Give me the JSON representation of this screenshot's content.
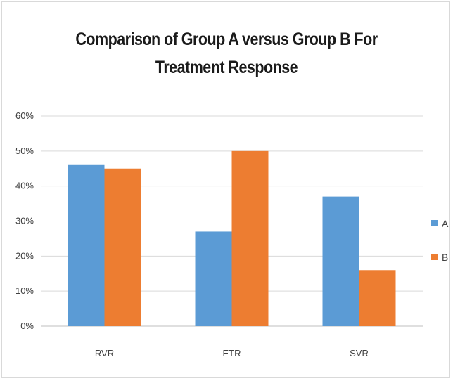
{
  "chart_data": {
    "type": "bar",
    "title_lines": [
      "Comparison of Group A versus Group B For",
      "Treatment Response"
    ],
    "categories": [
      "RVR",
      "ETR",
      "SVR"
    ],
    "series": [
      {
        "name": "A",
        "values": [
          46,
          27,
          37
        ],
        "color": "#5b9bd5"
      },
      {
        "name": "B",
        "values": [
          45,
          50,
          16
        ],
        "color": "#ed7d31"
      }
    ],
    "yticks": [
      "0%",
      "10%",
      "20%",
      "30%",
      "40%",
      "50%",
      "60%"
    ],
    "ylim": [
      0,
      60
    ],
    "grid": true,
    "legend": "right",
    "xlabel": "",
    "ylabel": ""
  }
}
